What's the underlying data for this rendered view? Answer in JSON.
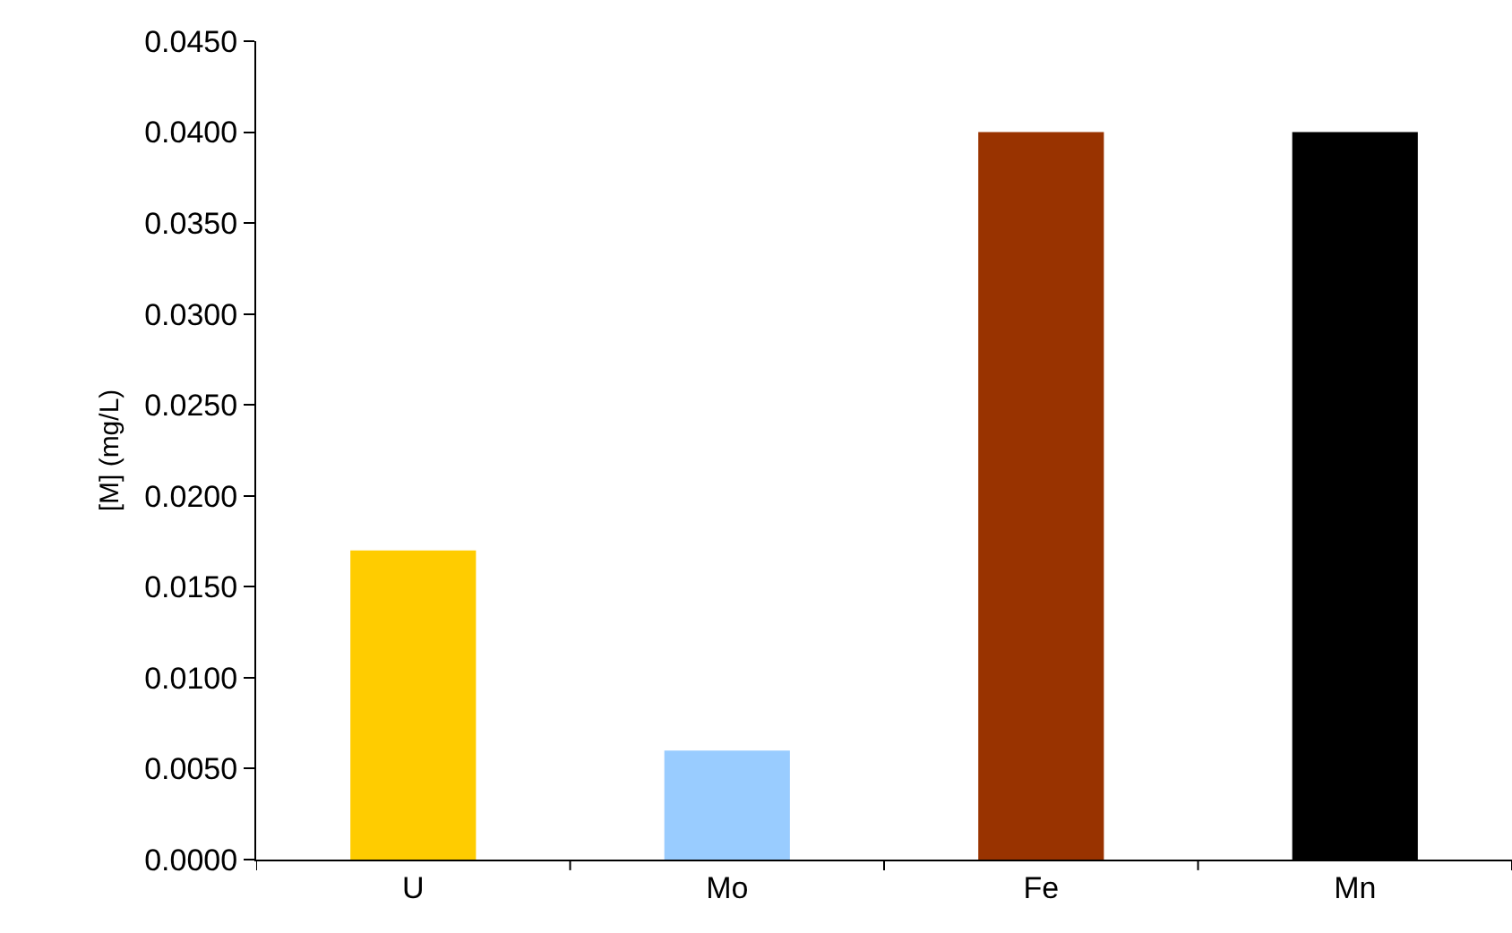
{
  "chart_data": {
    "type": "bar",
    "ylabel": "[M] (mg/L)",
    "categories": [
      "U",
      "Mo",
      "Fe",
      "Mn"
    ],
    "values": [
      0.017,
      0.006,
      0.04,
      0.04
    ],
    "colors": [
      "#ffcc00",
      "#99ccff",
      "#993300",
      "#000000"
    ],
    "ylim": [
      0,
      0.045
    ],
    "yticks": [
      {
        "value": 0,
        "label": "0.0000"
      },
      {
        "value": 0.005,
        "label": "0.0050"
      },
      {
        "value": 0.01,
        "label": "0.0100"
      },
      {
        "value": 0.015,
        "label": "0.0150"
      },
      {
        "value": 0.02,
        "label": "0.0200"
      },
      {
        "value": 0.025,
        "label": "0.0250"
      },
      {
        "value": 0.03,
        "label": "0.0300"
      },
      {
        "value": 0.035,
        "label": "0.0350"
      },
      {
        "value": 0.04,
        "label": "0.0400"
      },
      {
        "value": 0.045,
        "label": "0.0450"
      }
    ],
    "grid": false
  }
}
